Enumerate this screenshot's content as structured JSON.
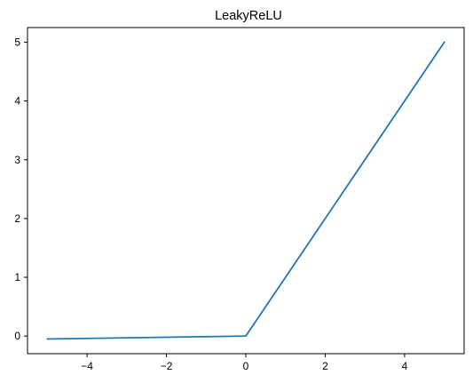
{
  "chart_data": {
    "type": "line",
    "title": "LeakyReLU",
    "xlabel": "",
    "ylabel": "",
    "xlim": [
      -5.5,
      5.5
    ],
    "ylim": [
      -0.3,
      5.25
    ],
    "xticks": [
      -4,
      -2,
      0,
      2,
      4
    ],
    "yticks": [
      0,
      1,
      2,
      3,
      4,
      5
    ],
    "xtick_labels": [
      "−4",
      "−2",
      "0",
      "2",
      "4"
    ],
    "ytick_labels": [
      "0",
      "1",
      "2",
      "3",
      "4",
      "5"
    ],
    "grid": false,
    "legend": "none",
    "series": [
      {
        "color": "#1f77b4",
        "x": [
          -5,
          0,
          5
        ],
        "y": [
          -0.05,
          0,
          5
        ]
      }
    ]
  }
}
